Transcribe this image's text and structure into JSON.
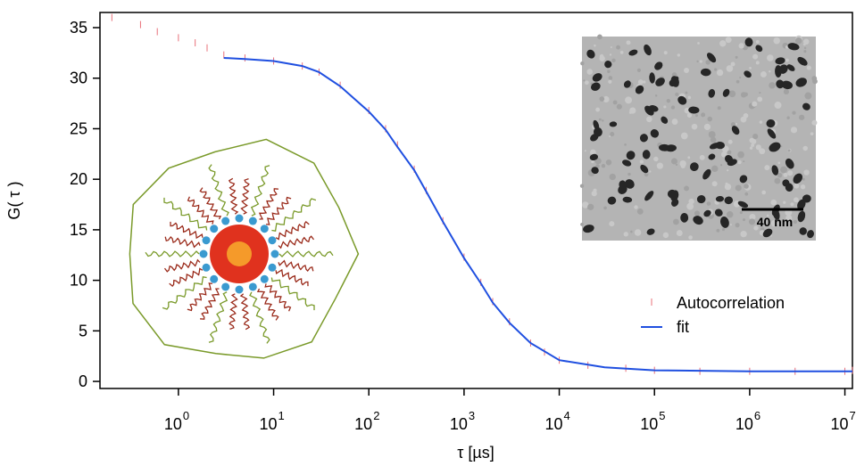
{
  "chart_data": {
    "type": "line",
    "xlabel": "τ [µs]",
    "ylabel": "G( τ )",
    "xscale": "log",
    "xlim": [
      0.15,
      12000000
    ],
    "ylim": [
      -0.7,
      36.5
    ],
    "xticks": [
      {
        "value": 1,
        "label": "10",
        "exponent": "0"
      },
      {
        "value": 10,
        "label": "10",
        "exponent": "1"
      },
      {
        "value": 100,
        "label": "10",
        "exponent": "2"
      },
      {
        "value": 1000,
        "label": "10",
        "exponent": "3"
      },
      {
        "value": 10000,
        "label": "10",
        "exponent": "4"
      },
      {
        "value": 100000,
        "label": "10",
        "exponent": "5"
      },
      {
        "value": 1000000,
        "label": "10",
        "exponent": "6"
      },
      {
        "value": 10000000,
        "label": "10",
        "exponent": "7"
      }
    ],
    "yticks": [
      0,
      5,
      10,
      15,
      20,
      25,
      30,
      35
    ],
    "legend": "right",
    "series": [
      {
        "name": "Autocorrelation",
        "color": "#e8707a",
        "style": "ticks",
        "x": [
          0.2,
          0.4,
          0.6,
          1,
          1.5,
          2,
          3,
          5,
          10,
          20,
          30,
          50,
          100,
          150,
          200,
          300,
          400,
          600,
          1000,
          1500,
          2000,
          3000,
          5000,
          7000,
          10000,
          20000,
          50000,
          100000,
          300000,
          1000000,
          3000000,
          10000000,
          12000000
        ],
        "values": [
          36,
          35.3,
          34.6,
          34,
          33.5,
          33,
          32.3,
          32,
          31.7,
          31.2,
          30.6,
          29.3,
          26.8,
          25,
          23.4,
          21,
          18.9,
          15.9,
          12.3,
          9.8,
          7.9,
          5.9,
          3.8,
          2.9,
          2.1,
          1.6,
          1.3,
          1.1,
          1.0,
          1.0,
          1.0,
          1.0,
          1.1
        ]
      },
      {
        "name": "fit",
        "color": "#1f4fe0",
        "style": "line",
        "x": [
          3,
          5,
          10,
          20,
          30,
          50,
          100,
          150,
          200,
          300,
          400,
          600,
          1000,
          1500,
          2000,
          3000,
          5000,
          10000,
          30000,
          100000,
          1000000,
          10000000,
          12000000
        ],
        "values": [
          32,
          31.9,
          31.7,
          31.2,
          30.6,
          29.2,
          26.7,
          24.9,
          23.2,
          20.9,
          18.8,
          15.8,
          12.2,
          9.7,
          7.8,
          5.8,
          3.8,
          2.1,
          1.4,
          1.1,
          1.0,
          1.0,
          1.0
        ]
      }
    ],
    "inset_scale_bar": "40 nm"
  }
}
